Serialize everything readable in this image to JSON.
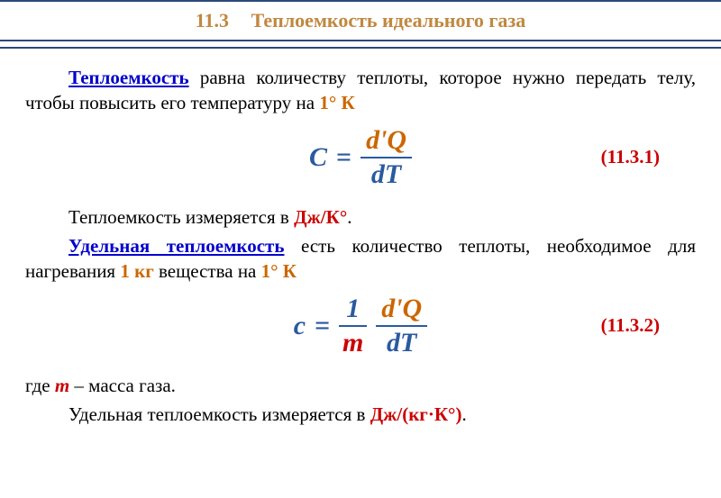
{
  "header": {
    "section_num": "11.3",
    "title": "Теплоемкость идеального газа"
  },
  "p1": {
    "term": "Теплоемкость",
    "text1": " равна количеству теплоты, которое нужно передать телу, чтобы повысить его температуру на ",
    "temp": "1° К"
  },
  "eq1": {
    "lhs": "C",
    "eq": "=",
    "num": "d'Q",
    "den": "dT",
    "label": "(11.3.1)"
  },
  "p2": {
    "text1": "Теплоемкость измеряется в  ",
    "unit": "Дж/К°",
    "dot": "."
  },
  "p3": {
    "term": "Удельная теплоемкость",
    "text1": " есть количество теплоты, необходимое для нагревания ",
    "mass": "1 кг",
    "text2": " вещества на ",
    "temp": "1° К"
  },
  "eq2": {
    "lhs": "c",
    "eq": "=",
    "frac1_num": "1",
    "frac1_den": "m",
    "frac2_num": "d'Q",
    "frac2_den": "dT",
    "label": "(11.3.2)"
  },
  "p4": {
    "text1": "где  ",
    "var": "m",
    "text2": "  –  масса газа."
  },
  "p5": {
    "text1": "Удельная теплоемкость измеряется в  ",
    "unit": "Дж/(кг·К°)",
    "dot": "."
  }
}
